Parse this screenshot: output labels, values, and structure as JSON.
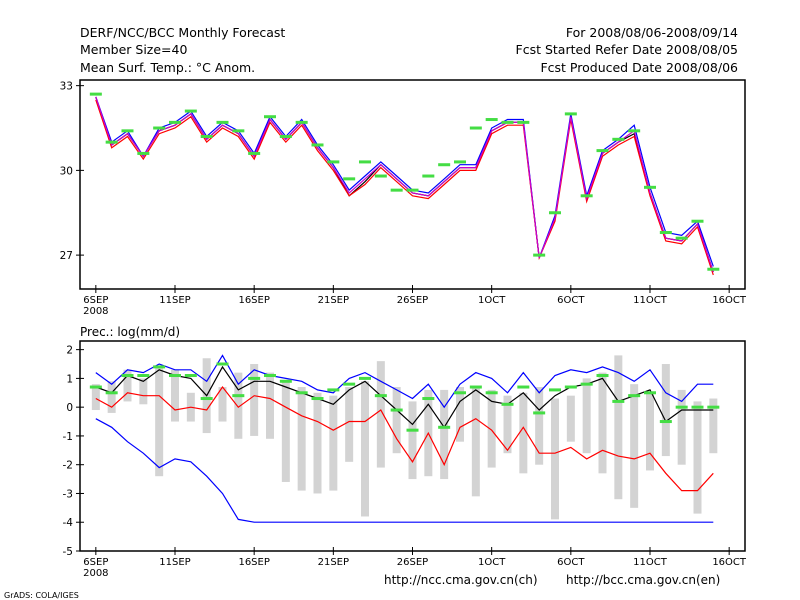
{
  "header": {
    "title": "DERF/NCC/BCC Monthly Forecast",
    "member_size": "Member Size=40",
    "variable": "Mean Surf. Temp.: °C Anom.",
    "period": "For 2008/08/06-2008/09/14",
    "started": "Fcst Started Refer Date 2008/08/05",
    "produced": "Fcst Produced Date 2008/08/06"
  },
  "footer": {
    "url_ch": "http://ncc.cma.gov.cn(ch)",
    "url_en": "http://bcc.cma.gov.cn(en)",
    "credit": "GrADS: COLA/IGES"
  },
  "colors": {
    "mean": "#000000",
    "upper": "#0000ff",
    "lower": "#ff0000",
    "marker": "#44dd44",
    "bar": "#d3d3d3",
    "magenta": "#cc00cc"
  },
  "chart_data": [
    {
      "type": "line",
      "title": "Mean Surf. Temp.: °C Anom.",
      "xlabel": "",
      "ylabel": "",
      "ylim": [
        25.8,
        33.2
      ],
      "yticks": [
        27,
        30,
        33
      ],
      "xtick_labels": [
        "6SEP",
        "11SEP",
        "16SEP",
        "21SEP",
        "26SEP",
        "1OCT",
        "6OCT",
        "11OCT",
        "16OCT"
      ],
      "xtick_days": [
        1,
        6,
        11,
        16,
        21,
        26,
        31,
        36,
        41
      ],
      "year_label": "2008",
      "day_range": [
        0,
        42
      ],
      "x": [
        1,
        2,
        3,
        4,
        5,
        6,
        7,
        8,
        9,
        10,
        11,
        12,
        13,
        14,
        15,
        16,
        17,
        18,
        19,
        20,
        21,
        22,
        23,
        24,
        25,
        26,
        27,
        28,
        29,
        30,
        31,
        32,
        33,
        34,
        35,
        36,
        37,
        38,
        39,
        40
      ],
      "series": [
        {
          "name": "mean",
          "color": "#000000",
          "values": [
            32.6,
            30.9,
            31.3,
            30.5,
            31.4,
            31.6,
            32.0,
            31.1,
            31.6,
            31.3,
            30.5,
            31.8,
            31.1,
            31.7,
            30.8,
            30.1,
            29.1,
            29.6,
            30.2,
            29.7,
            29.2,
            29.1,
            29.6,
            30.1,
            30.1,
            31.4,
            31.7,
            31.7,
            26.9,
            28.3,
            31.9,
            29.0,
            30.6,
            31.0,
            31.3,
            29.2,
            27.6,
            27.5,
            28.1,
            26.4
          ]
        },
        {
          "name": "upper",
          "color": "#0000ff",
          "values": [
            32.6,
            31.0,
            31.4,
            30.5,
            31.5,
            31.7,
            32.1,
            31.2,
            31.7,
            31.4,
            30.6,
            31.9,
            31.2,
            31.8,
            30.9,
            30.2,
            29.3,
            29.8,
            30.3,
            29.8,
            29.3,
            29.2,
            29.7,
            30.2,
            30.2,
            31.5,
            31.8,
            31.8,
            26.9,
            28.4,
            32.0,
            29.1,
            30.7,
            31.1,
            31.6,
            29.4,
            27.8,
            27.7,
            28.2,
            26.6
          ]
        },
        {
          "name": "lower",
          "color": "#ff0000",
          "values": [
            32.5,
            30.8,
            31.2,
            30.4,
            31.3,
            31.5,
            31.9,
            31.0,
            31.5,
            31.2,
            30.4,
            31.7,
            31.0,
            31.6,
            30.7,
            30.0,
            29.1,
            29.5,
            30.1,
            29.6,
            29.1,
            29.0,
            29.5,
            30.0,
            30.0,
            31.3,
            31.6,
            31.6,
            26.9,
            28.2,
            31.8,
            28.9,
            30.5,
            30.9,
            31.2,
            29.1,
            27.5,
            27.4,
            28.0,
            26.3
          ]
        },
        {
          "name": "magenta",
          "color": "#cc00cc",
          "values": [
            32.6,
            30.9,
            31.3,
            30.5,
            31.4,
            31.6,
            32.0,
            31.1,
            31.6,
            31.3,
            30.5,
            31.8,
            31.1,
            31.7,
            30.8,
            30.1,
            29.2,
            29.7,
            30.2,
            29.7,
            29.2,
            29.1,
            29.6,
            30.1,
            30.1,
            31.4,
            31.7,
            31.7,
            26.9,
            28.3,
            31.9,
            29.0,
            30.6,
            31.0,
            31.4,
            29.2,
            27.6,
            27.5,
            28.1,
            26.4
          ]
        }
      ],
      "markers": {
        "name": "observed",
        "color": "#44dd44",
        "values": [
          32.7,
          31.0,
          31.4,
          30.6,
          31.5,
          31.7,
          32.1,
          31.2,
          31.7,
          31.4,
          30.6,
          31.9,
          31.2,
          31.7,
          30.9,
          30.3,
          29.7,
          30.3,
          29.8,
          29.3,
          29.3,
          29.8,
          30.2,
          30.3,
          31.5,
          31.8,
          31.7,
          31.7,
          27.0,
          28.5,
          32.0,
          29.1,
          30.7,
          31.1,
          31.4,
          29.4,
          27.8,
          27.6,
          28.2,
          26.5
        ]
      }
    },
    {
      "type": "bar",
      "title": "Prec.: log(mm/d)",
      "xlabel": "",
      "ylabel": "",
      "ylim": [
        -5,
        2.3
      ],
      "yticks": [
        -5,
        -4,
        -3,
        -2,
        -1,
        0,
        1,
        2
      ],
      "xtick_labels": [
        "6SEP",
        "11SEP",
        "16SEP",
        "21SEP",
        "26SEP",
        "1OCT",
        "6OCT",
        "11OCT",
        "16OCT"
      ],
      "xtick_days": [
        1,
        6,
        11,
        16,
        21,
        26,
        31,
        36,
        41
      ],
      "year_label": "2008",
      "day_range": [
        0,
        42
      ],
      "x": [
        1,
        2,
        3,
        4,
        5,
        6,
        7,
        8,
        9,
        10,
        11,
        12,
        13,
        14,
        15,
        16,
        17,
        18,
        19,
        20,
        21,
        22,
        23,
        24,
        25,
        26,
        27,
        28,
        29,
        30,
        31,
        32,
        33,
        34,
        35,
        36,
        37,
        38,
        39,
        40
      ],
      "bars": {
        "name": "range",
        "color": "#d3d3d3",
        "low": [
          -0.1,
          -0.2,
          0.2,
          0.1,
          -2.4,
          -0.5,
          -0.5,
          -0.9,
          -0.5,
          -1.1,
          -1.0,
          -1.1,
          -2.6,
          -2.9,
          -3.0,
          -2.9,
          -1.9,
          -3.8,
          -2.1,
          -1.6,
          -2.5,
          -2.4,
          -2.5,
          -1.2,
          -3.1,
          -2.1,
          -1.6,
          -2.3,
          -2.0,
          -3.9,
          -1.2,
          -1.6,
          -2.3,
          -3.2,
          -3.5,
          -2.2,
          -1.7,
          -2.0,
          -3.7,
          -1.6
        ],
        "high": [
          0.8,
          0.9,
          1.3,
          1.0,
          1.4,
          1.3,
          0.5,
          1.7,
          0.7,
          1.2,
          1.5,
          1.2,
          0.9,
          0.7,
          0.5,
          0.4,
          0.7,
          0.9,
          1.6,
          0.7,
          0.2,
          0.6,
          0.6,
          0.7,
          0.7,
          0.6,
          0.4,
          0.5,
          0.7,
          0.3,
          0.4,
          1.0,
          1.2,
          1.8,
          0.8,
          0.5,
          1.5,
          0.6,
          0.2,
          0.3
        ]
      },
      "series": [
        {
          "name": "mean",
          "color": "#000000",
          "values": [
            0.7,
            0.5,
            1.1,
            0.9,
            1.3,
            1.1,
            1.0,
            0.4,
            1.4,
            0.6,
            0.9,
            0.9,
            0.7,
            0.5,
            0.3,
            0.1,
            0.6,
            0.9,
            0.4,
            -0.1,
            -0.6,
            0.1,
            -0.7,
            0.2,
            0.6,
            0.2,
            0.1,
            0.5,
            -0.1,
            0.4,
            0.7,
            0.8,
            1.0,
            0.2,
            0.4,
            0.6,
            -0.5,
            -0.1,
            -0.1,
            -0.1
          ]
        },
        {
          "name": "upper",
          "color": "#0000ff",
          "values": [
            1.2,
            0.8,
            1.3,
            1.2,
            1.5,
            1.3,
            1.3,
            0.9,
            1.8,
            0.8,
            1.3,
            1.1,
            1.0,
            0.9,
            0.6,
            0.5,
            1.0,
            1.2,
            0.9,
            0.6,
            0.3,
            0.8,
            0.0,
            0.8,
            1.2,
            1.0,
            0.5,
            1.2,
            0.5,
            1.1,
            1.3,
            1.2,
            1.4,
            1.2,
            0.9,
            1.3,
            0.5,
            0.2,
            0.8,
            0.8
          ]
        },
        {
          "name": "lower",
          "color": "#ff0000",
          "values": [
            0.3,
            0.0,
            0.5,
            0.4,
            0.4,
            -0.1,
            0.0,
            -0.1,
            0.7,
            0.0,
            0.4,
            0.3,
            0.0,
            -0.3,
            -0.5,
            -0.8,
            -0.5,
            -0.5,
            -0.1,
            -1.1,
            -1.9,
            -0.9,
            -2.0,
            -0.7,
            -0.4,
            -0.8,
            -1.5,
            -0.7,
            -1.6,
            -1.6,
            -1.4,
            -1.8,
            -1.5,
            -1.7,
            -1.8,
            -1.6,
            -2.3,
            -2.9,
            -2.9,
            -2.3
          ]
        },
        {
          "name": "minimum",
          "color": "#0000ff",
          "values": [
            -0.4,
            -0.7,
            -1.2,
            -1.6,
            -2.1,
            -1.8,
            -1.9,
            -2.4,
            -3.0,
            -3.9,
            -4.0,
            -4.0,
            -4.0,
            -4.0,
            -4.0,
            -4.0,
            -4.0,
            -4.0,
            -4.0,
            -4.0,
            -4.0,
            -4.0,
            -4.0,
            -4.0,
            -4.0,
            -4.0,
            -4.0,
            -4.0,
            -4.0,
            -4.0,
            -4.0,
            -4.0,
            -4.0,
            -4.0,
            -4.0,
            -4.0,
            -4.0,
            -4.0,
            -4.0,
            -4.0
          ]
        }
      ],
      "markers": {
        "name": "observed",
        "color": "#44dd44",
        "values": [
          0.7,
          0.5,
          1.1,
          1.1,
          1.4,
          1.1,
          1.1,
          0.3,
          1.5,
          0.4,
          1.0,
          1.1,
          0.9,
          0.5,
          0.3,
          0.6,
          0.8,
          1.0,
          0.4,
          -0.1,
          -0.8,
          0.3,
          -0.7,
          0.5,
          0.7,
          0.5,
          0.1,
          0.7,
          -0.2,
          0.6,
          0.7,
          0.8,
          1.1,
          0.2,
          0.4,
          0.5,
          -0.5,
          0.0,
          0.0,
          0.0
        ]
      }
    }
  ]
}
